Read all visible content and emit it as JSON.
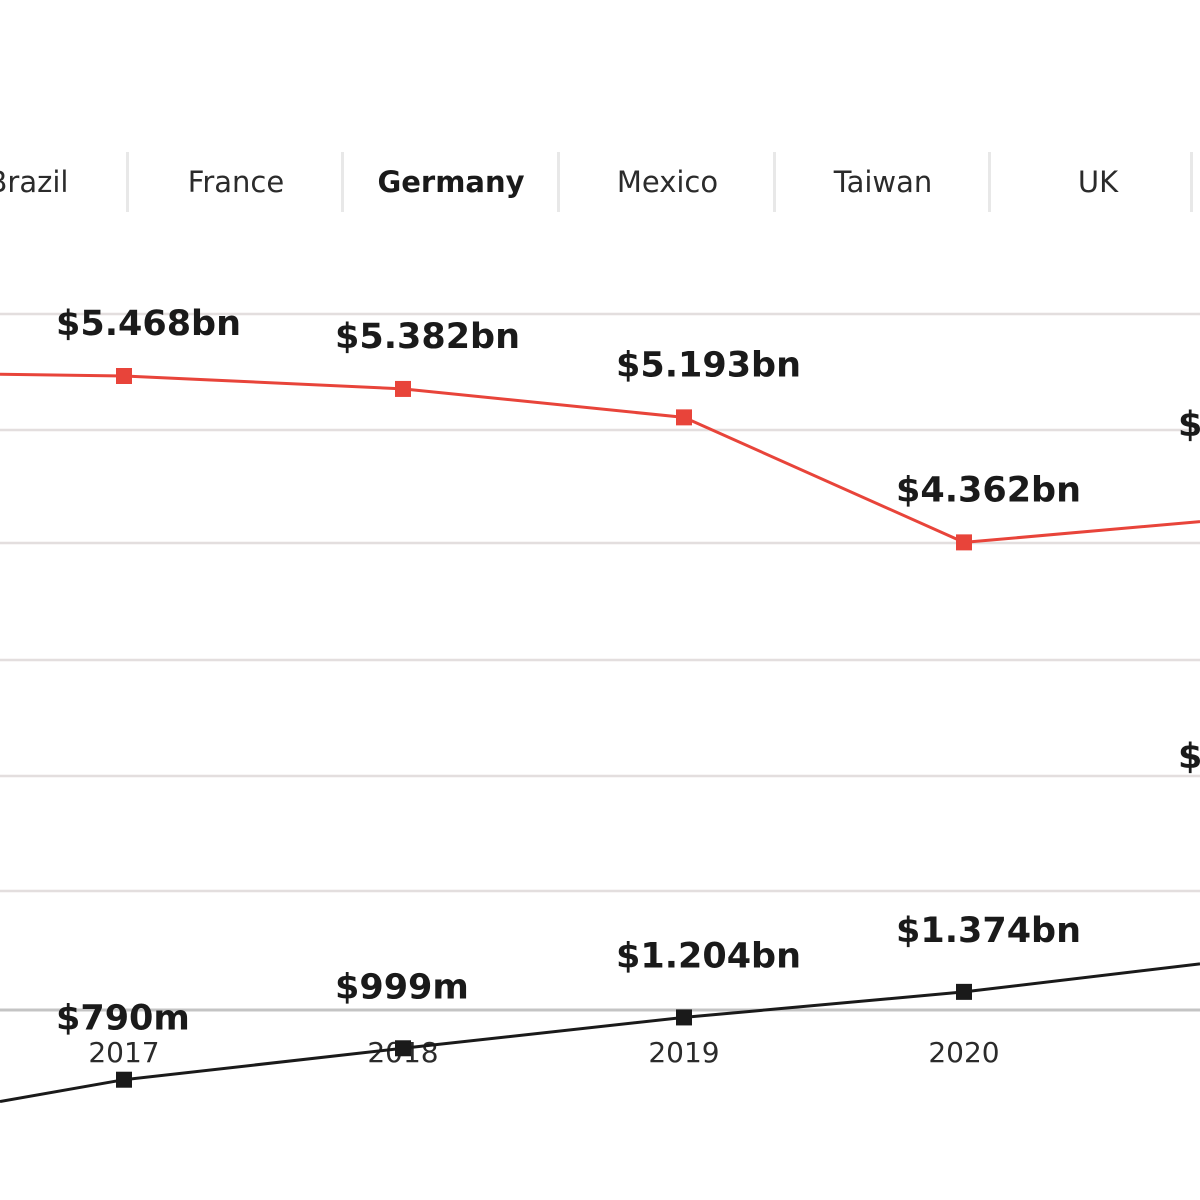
{
  "tabs": {
    "items": [
      {
        "label": "Brazil"
      },
      {
        "label": "France"
      },
      {
        "label": "Germany"
      },
      {
        "label": "Mexico"
      },
      {
        "label": "Taiwan"
      },
      {
        "label": "UK"
      }
    ],
    "active_index": 2
  },
  "chart_data": {
    "type": "line",
    "x": [
      "2017",
      "2018",
      "2019",
      "2020"
    ],
    "series": [
      {
        "color": "#e8443a",
        "values": [
          5.468,
          5.382,
          5.193,
          4.362
        ],
        "labels": [
          "$5.468bn",
          "$5.382bn",
          "$5.193bn",
          "$4.362bn"
        ]
      },
      {
        "color": "#1a1a1a",
        "values": [
          0.79,
          0.999,
          1.204,
          1.374
        ],
        "labels": [
          "$790m",
          "$999m",
          "$1.204bn",
          "$1.374bn"
        ]
      }
    ],
    "grid": true,
    "legend": "none"
  }
}
